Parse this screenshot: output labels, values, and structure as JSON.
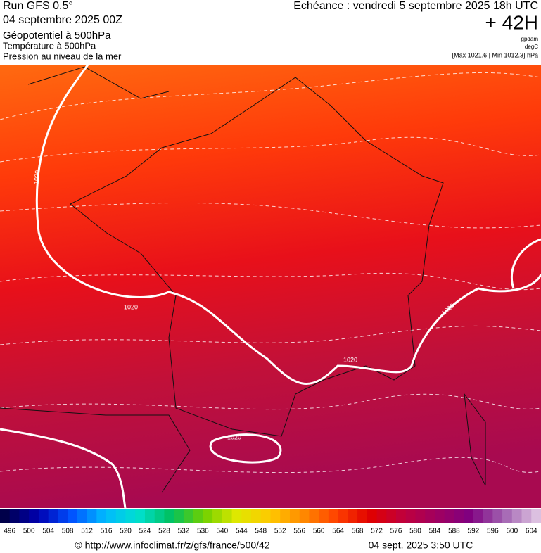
{
  "header": {
    "run": "Run GFS 0.5°",
    "date": "04 septembre 2025 00Z",
    "fields": [
      "Géopotentiel à 500hPa",
      "Température à 500hPa",
      "Pression au niveau de la mer"
    ],
    "valid": "Echéance : vendredi 5 septembre 2025 18h UTC",
    "lead": "+ 42H",
    "units": [
      "gpdam",
      "degC"
    ],
    "range": "[Max 1021.6 | Min 1012.3] hPa"
  },
  "map": {
    "isobar_labels": [
      "1020",
      "1020",
      "1020",
      "1020",
      "1020"
    ]
  },
  "colorbar": {
    "ticks": [
      496,
      500,
      504,
      508,
      512,
      516,
      520,
      524,
      528,
      532,
      536,
      540,
      544,
      548,
      552,
      556,
      560,
      564,
      568,
      572,
      576,
      580,
      584,
      588,
      592,
      596,
      600,
      604
    ],
    "colors": [
      "#00004a",
      "#0000b0",
      "#0050ff",
      "#00b8ff",
      "#00e0d0",
      "#00c060",
      "#70d000",
      "#e0e800",
      "#ffc800",
      "#ff8800",
      "#ff4000",
      "#e00000",
      "#c0003c",
      "#a00060",
      "#800080",
      "#a060b0",
      "#dcc0e0"
    ]
  },
  "footer": {
    "source": "© http://www.infoclimat.fr/z/gfs/france/500/42",
    "stamp": "04 sept. 2025  3:50 UTC"
  }
}
